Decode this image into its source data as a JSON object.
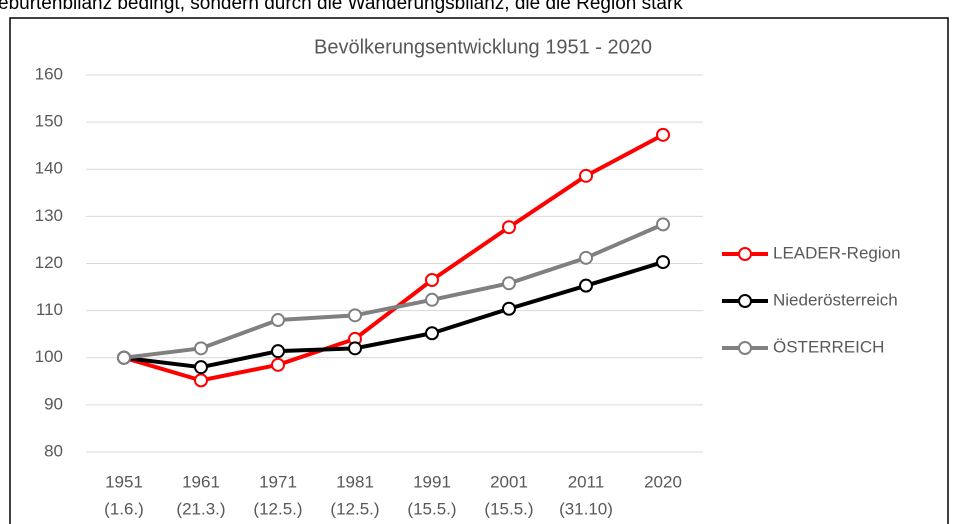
{
  "page_text": "eburtenbilanz bedingt, sondern durch die Wanderungsbilanz, die die Region stark",
  "chart_data": {
    "type": "line",
    "title": "Bevölkerungsentwicklung 1951 - 2020",
    "categories": [
      "1951",
      "1961",
      "1971",
      "1981",
      "1991",
      "2001",
      "2011",
      "2020"
    ],
    "category_sublabels": [
      "(1.6.)",
      "(21.3.)",
      "(12.5.)",
      "(12.5.)",
      "(15.5.)",
      "(15.5.)",
      "(31.10)",
      null
    ],
    "series": [
      {
        "name": "LEADER-Region",
        "color": "#ff0000",
        "values": [
          100,
          95.2,
          98.5,
          104,
          116.5,
          127.7,
          138.6,
          147.3
        ]
      },
      {
        "name": "Niederösterreich",
        "color": "#000000",
        "values": [
          100,
          98,
          101.4,
          102,
          105.2,
          110.4,
          115.3,
          120.3
        ]
      },
      {
        "name": "ÖSTERREICH",
        "color": "#808080",
        "values": [
          100,
          102,
          108,
          109,
          112.3,
          115.8,
          121.2,
          128.3
        ]
      }
    ],
    "ylim": [
      80,
      160
    ],
    "yticks": [
      80,
      90,
      100,
      110,
      120,
      130,
      140,
      150,
      160
    ],
    "grid": true,
    "legend": "right"
  }
}
